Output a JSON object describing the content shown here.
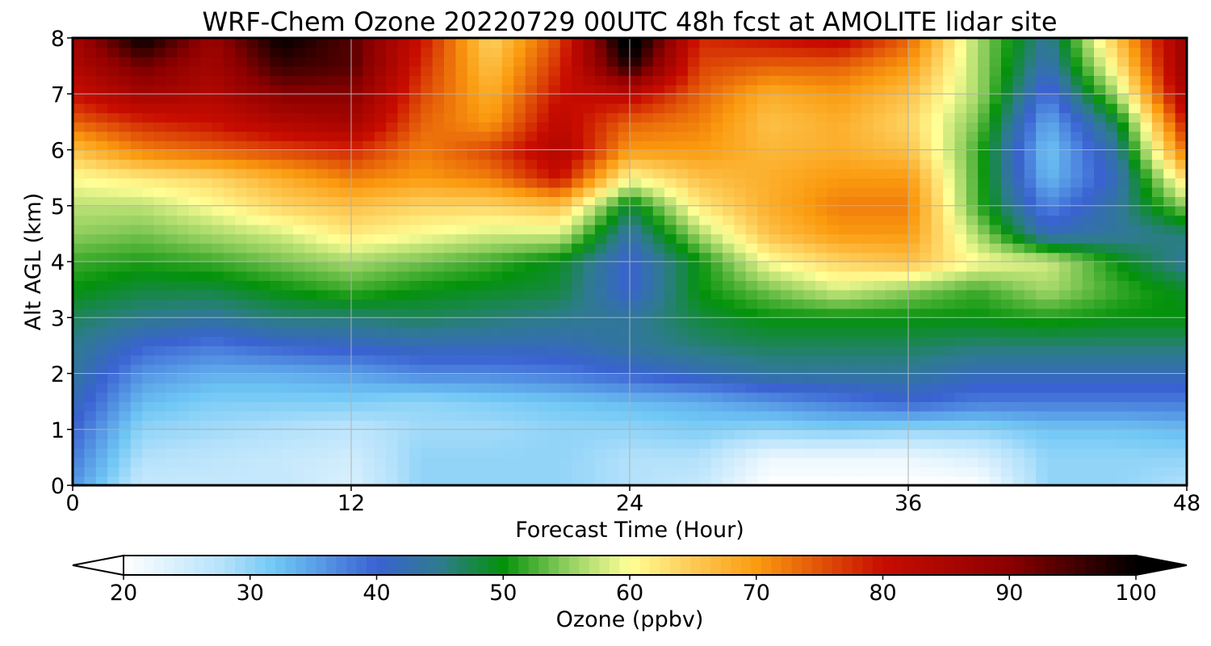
{
  "chart_data": {
    "type": "heatmap",
    "title": "WRF-Chem Ozone  20220729 00UTC 48h fcst at AMOLITE lidar site",
    "xlabel": "Forecast Time (Hour)",
    "ylabel": "Alt AGL (km)",
    "xlim": [
      0,
      48
    ],
    "ylim": [
      0,
      8
    ],
    "xticks": [
      0,
      12,
      24,
      36,
      48
    ],
    "yticks": [
      0,
      1,
      2,
      3,
      4,
      5,
      6,
      7,
      8
    ],
    "grid": true,
    "x": [
      0,
      3,
      6,
      9,
      12,
      15,
      18,
      21,
      24,
      27,
      30,
      33,
      36,
      39,
      42,
      45,
      48
    ],
    "y": [
      0,
      0.5,
      1,
      1.5,
      2,
      2.5,
      3,
      3.5,
      4,
      4.5,
      5,
      5.5,
      6,
      6.5,
      7,
      7.5,
      8
    ],
    "z": [
      [
        36,
        26,
        26,
        26,
        24,
        30,
        30,
        30,
        28,
        26,
        20,
        20,
        20,
        20,
        30,
        30,
        28
      ],
      [
        38,
        28,
        27,
        26,
        25,
        30,
        30,
        30,
        28,
        28,
        22,
        22,
        22,
        24,
        30,
        30,
        30
      ],
      [
        40,
        30,
        29,
        28,
        27,
        29,
        29,
        30,
        30,
        31,
        30,
        31,
        30,
        30,
        32,
        32,
        33
      ],
      [
        42,
        33,
        31,
        31,
        31,
        30,
        31,
        32,
        33,
        34,
        36,
        38,
        40,
        38,
        38,
        38,
        38
      ],
      [
        44,
        36,
        34,
        34,
        35,
        37,
        37,
        38,
        40,
        42,
        44,
        44,
        44,
        42,
        42,
        42,
        42
      ],
      [
        45,
        40,
        38,
        40,
        41,
        42,
        42,
        42,
        44,
        46,
        47,
        47,
        47,
        46,
        46,
        46,
        46
      ],
      [
        47,
        45,
        44,
        46,
        46,
        47,
        46,
        45,
        44,
        48,
        50,
        50,
        50,
        50,
        51,
        50,
        50
      ],
      [
        50,
        48,
        48,
        50,
        52,
        50,
        49,
        48,
        40,
        50,
        54,
        58,
        55,
        52,
        56,
        52,
        49
      ],
      [
        52,
        51,
        52,
        54,
        56,
        54,
        52,
        49,
        40,
        50,
        60,
        64,
        66,
        60,
        58,
        50,
        44
      ],
      [
        55,
        54,
        56,
        58,
        62,
        60,
        58,
        58,
        43,
        56,
        66,
        70,
        70,
        56,
        42,
        44,
        46
      ],
      [
        57,
        57,
        60,
        64,
        66,
        64,
        64,
        66,
        48,
        62,
        68,
        72,
        72,
        52,
        37,
        44,
        55
      ],
      [
        60,
        62,
        64,
        68,
        72,
        70,
        72,
        80,
        60,
        66,
        68,
        70,
        70,
        52,
        33,
        42,
        64
      ],
      [
        66,
        72,
        74,
        76,
        78,
        72,
        76,
        84,
        70,
        70,
        67,
        68,
        66,
        52,
        32,
        44,
        74
      ],
      [
        74,
        78,
        80,
        84,
        86,
        74,
        70,
        82,
        74,
        72,
        66,
        68,
        64,
        54,
        34,
        48,
        80
      ],
      [
        80,
        86,
        84,
        90,
        90,
        76,
        68,
        80,
        82,
        74,
        68,
        70,
        66,
        56,
        38,
        56,
        86
      ],
      [
        84,
        92,
        86,
        96,
        94,
        78,
        66,
        78,
        98,
        76,
        74,
        74,
        70,
        56,
        42,
        62,
        88
      ],
      [
        86,
        100,
        88,
        100,
        94,
        80,
        64,
        76,
        104,
        78,
        80,
        82,
        74,
        56,
        44,
        66,
        88
      ]
    ],
    "colorbar": {
      "label": "Ozone  (ppbv)",
      "min": 20,
      "max": 100,
      "ticks": [
        20,
        30,
        40,
        50,
        60,
        70,
        80,
        90,
        100
      ],
      "extend": "both"
    },
    "colormap_stops": [
      {
        "v": 20,
        "c": "#ffffff"
      },
      {
        "v": 28,
        "c": "#b3e1fb"
      },
      {
        "v": 32,
        "c": "#6fc7f5"
      },
      {
        "v": 40,
        "c": "#3a62d2"
      },
      {
        "v": 45,
        "c": "#2e7b8e"
      },
      {
        "v": 50,
        "c": "#04920b"
      },
      {
        "v": 55,
        "c": "#8fce5e"
      },
      {
        "v": 60,
        "c": "#ffff96"
      },
      {
        "v": 65,
        "c": "#fdca55"
      },
      {
        "v": 70,
        "c": "#fb9b0f"
      },
      {
        "v": 80,
        "c": "#c80c00"
      },
      {
        "v": 90,
        "c": "#8c0000"
      },
      {
        "v": 100,
        "c": "#000000"
      }
    ]
  }
}
